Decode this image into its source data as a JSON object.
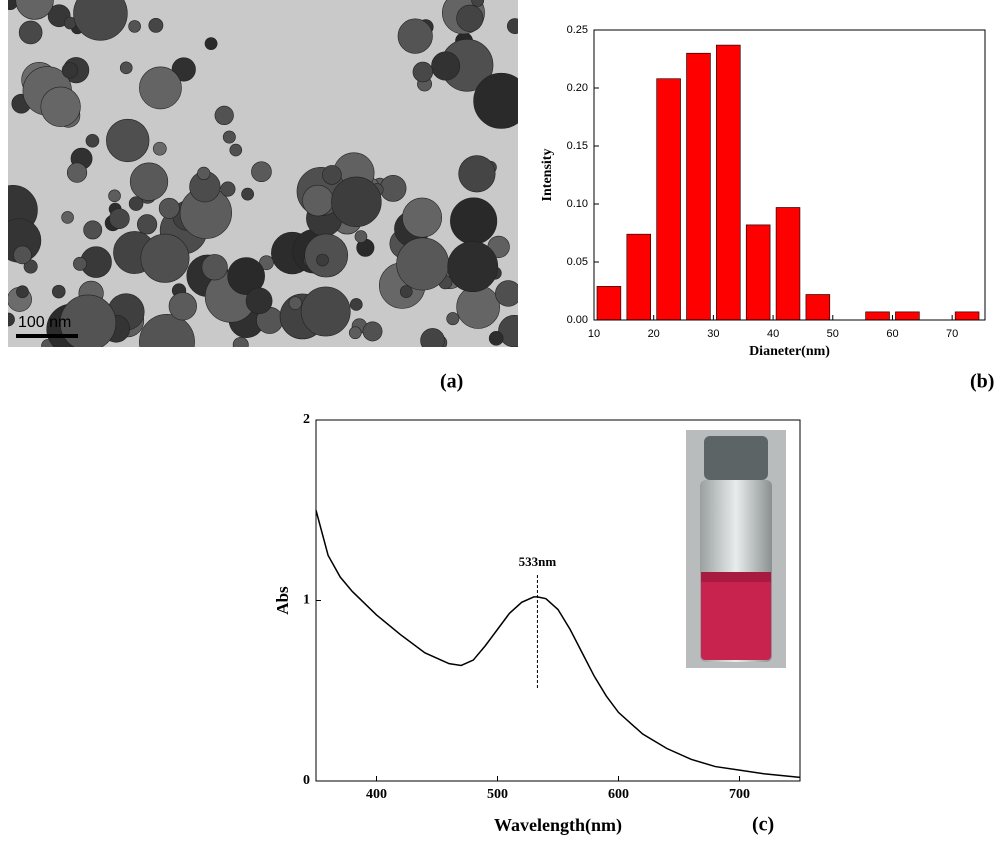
{
  "panels": {
    "a": {
      "label": "(a)",
      "scale_bar": "100 nm"
    },
    "b": {
      "label": "(b)"
    },
    "c": {
      "label": "(c)"
    }
  },
  "chart_data": [
    {
      "type": "histogram",
      "xlabel": "Dianeter(nm)",
      "ylabel": "Intensity",
      "color": "#ff0000",
      "bins": [
        10,
        15,
        20,
        25,
        30,
        35,
        40,
        45,
        50,
        55,
        60,
        65,
        70,
        75
      ],
      "values": [
        0.029,
        0.074,
        0.208,
        0.23,
        0.237,
        0.082,
        0.097,
        0.022,
        0,
        0.007,
        0.007,
        0,
        0.007
      ],
      "xlim": [
        10,
        75.5
      ],
      "xticks": [
        10,
        20,
        30,
        40,
        50,
        60,
        70
      ],
      "ylim": [
        0,
        0.25
      ],
      "yticks": [
        {
          "value": 0,
          "label": "0.00"
        },
        {
          "value": 0.05,
          "label": "0.05"
        },
        {
          "value": 0.1,
          "label": "0.10"
        },
        {
          "value": 0.15,
          "label": "0.15"
        },
        {
          "value": 0.2,
          "label": "0.20"
        },
        {
          "value": 0.25,
          "label": "0.25"
        }
      ]
    },
    {
      "type": "line",
      "xlabel": "Wavelength(nm)",
      "ylabel": "Abs",
      "color": "#000000",
      "x": [
        350,
        360,
        370,
        380,
        400,
        420,
        440,
        460,
        470,
        480,
        490,
        500,
        510,
        520,
        530,
        533,
        540,
        550,
        560,
        570,
        580,
        590,
        600,
        620,
        640,
        660,
        680,
        700,
        720,
        750
      ],
      "values": [
        1.5,
        1.25,
        1.13,
        1.05,
        0.92,
        0.81,
        0.71,
        0.65,
        0.64,
        0.67,
        0.75,
        0.84,
        0.93,
        0.99,
        1.02,
        1.02,
        1.01,
        0.95,
        0.84,
        0.71,
        0.58,
        0.47,
        0.38,
        0.26,
        0.18,
        0.12,
        0.08,
        0.06,
        0.04,
        0.02
      ],
      "xlim": [
        350,
        750
      ],
      "xticks": [
        400,
        500,
        600,
        700
      ],
      "ylim": [
        0,
        2
      ],
      "yticks": [
        0,
        1,
        2
      ],
      "annotations": [
        {
          "text": "533nm",
          "x": 533
        }
      ]
    }
  ]
}
